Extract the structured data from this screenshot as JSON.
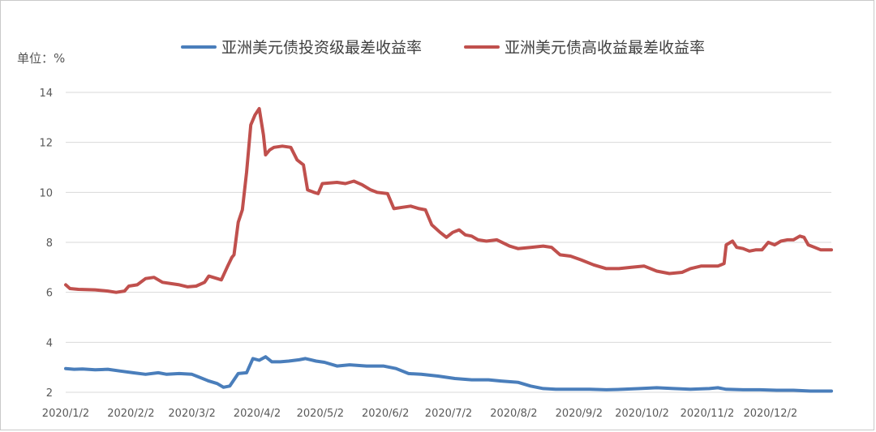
{
  "chart_data": {
    "type": "line",
    "unit_label": "单位：%",
    "ylim": [
      2,
      14
    ],
    "y_ticks": [
      "2",
      "4",
      "6",
      "8",
      "10",
      "12",
      "14"
    ],
    "x_range": [
      "2020-01-02",
      "2020-12-31"
    ],
    "x_tick_labels": [
      "2020/1/2",
      "2020/2/2",
      "2020/3/2",
      "2020/4/2",
      "2020/5/2",
      "2020/6/2",
      "2020/7/2",
      "2020/8/2",
      "2020/9/2",
      "2020/10/2",
      "2020/11/2",
      "2020/12/2"
    ],
    "grid": "horizontal",
    "legend_position": "top",
    "series": [
      {
        "name": "亚洲美元债投资级最差收益率",
        "color": "#4a7ebb",
        "points": [
          [
            "2020-01-02",
            2.95
          ],
          [
            "2020-01-06",
            2.92
          ],
          [
            "2020-01-10",
            2.93
          ],
          [
            "2020-01-16",
            2.9
          ],
          [
            "2020-01-22",
            2.92
          ],
          [
            "2020-01-28",
            2.85
          ],
          [
            "2020-02-03",
            2.78
          ],
          [
            "2020-02-09",
            2.72
          ],
          [
            "2020-02-15",
            2.78
          ],
          [
            "2020-02-19",
            2.72
          ],
          [
            "2020-02-25",
            2.75
          ],
          [
            "2020-03-02",
            2.72
          ],
          [
            "2020-03-05",
            2.62
          ],
          [
            "2020-03-10",
            2.45
          ],
          [
            "2020-03-14",
            2.35
          ],
          [
            "2020-03-17",
            2.2
          ],
          [
            "2020-03-20",
            2.25
          ],
          [
            "2020-03-24",
            2.75
          ],
          [
            "2020-03-28",
            2.78
          ],
          [
            "2020-03-31",
            3.35
          ],
          [
            "2020-04-03",
            3.28
          ],
          [
            "2020-04-06",
            3.42
          ],
          [
            "2020-04-09",
            3.22
          ],
          [
            "2020-04-13",
            3.22
          ],
          [
            "2020-04-17",
            3.25
          ],
          [
            "2020-04-22",
            3.3
          ],
          [
            "2020-04-25",
            3.35
          ],
          [
            "2020-04-30",
            3.25
          ],
          [
            "2020-05-04",
            3.2
          ],
          [
            "2020-05-10",
            3.05
          ],
          [
            "2020-05-16",
            3.1
          ],
          [
            "2020-05-24",
            3.05
          ],
          [
            "2020-06-01",
            3.05
          ],
          [
            "2020-06-07",
            2.95
          ],
          [
            "2020-06-13",
            2.75
          ],
          [
            "2020-06-19",
            2.72
          ],
          [
            "2020-06-27",
            2.65
          ],
          [
            "2020-07-05",
            2.55
          ],
          [
            "2020-07-13",
            2.5
          ],
          [
            "2020-07-21",
            2.5
          ],
          [
            "2020-07-27",
            2.45
          ],
          [
            "2020-08-04",
            2.4
          ],
          [
            "2020-08-10",
            2.25
          ],
          [
            "2020-08-16",
            2.15
          ],
          [
            "2020-08-22",
            2.12
          ],
          [
            "2020-08-30",
            2.12
          ],
          [
            "2020-09-07",
            2.12
          ],
          [
            "2020-09-15",
            2.1
          ],
          [
            "2020-09-23",
            2.12
          ],
          [
            "2020-10-01",
            2.15
          ],
          [
            "2020-10-09",
            2.18
          ],
          [
            "2020-10-17",
            2.15
          ],
          [
            "2020-10-25",
            2.12
          ],
          [
            "2020-11-03",
            2.15
          ],
          [
            "2020-11-07",
            2.18
          ],
          [
            "2020-11-11",
            2.12
          ],
          [
            "2020-11-19",
            2.1
          ],
          [
            "2020-11-27",
            2.1
          ],
          [
            "2020-12-05",
            2.08
          ],
          [
            "2020-12-13",
            2.08
          ],
          [
            "2020-12-21",
            2.05
          ],
          [
            "2020-12-31",
            2.05
          ]
        ]
      },
      {
        "name": "亚洲美元债高收益最差收益率",
        "color": "#c0504d",
        "points": [
          [
            "2020-01-02",
            6.3
          ],
          [
            "2020-01-04",
            6.15
          ],
          [
            "2020-01-08",
            6.12
          ],
          [
            "2020-01-16",
            6.1
          ],
          [
            "2020-01-22",
            6.05
          ],
          [
            "2020-01-26",
            6.0
          ],
          [
            "2020-01-30",
            6.05
          ],
          [
            "2020-02-01",
            6.25
          ],
          [
            "2020-02-05",
            6.3
          ],
          [
            "2020-02-09",
            6.55
          ],
          [
            "2020-02-13",
            6.6
          ],
          [
            "2020-02-17",
            6.4
          ],
          [
            "2020-02-21",
            6.35
          ],
          [
            "2020-02-25",
            6.3
          ],
          [
            "2020-02-29",
            6.22
          ],
          [
            "2020-03-04",
            6.25
          ],
          [
            "2020-03-08",
            6.4
          ],
          [
            "2020-03-10",
            6.65
          ],
          [
            "2020-03-14",
            6.55
          ],
          [
            "2020-03-16",
            6.5
          ],
          [
            "2020-03-19",
            7.05
          ],
          [
            "2020-03-21",
            7.4
          ],
          [
            "2020-03-22",
            7.5
          ],
          [
            "2020-03-24",
            8.8
          ],
          [
            "2020-03-26",
            9.3
          ],
          [
            "2020-03-28",
            10.8
          ],
          [
            "2020-03-30",
            12.7
          ],
          [
            "2020-04-01",
            13.1
          ],
          [
            "2020-04-03",
            13.35
          ],
          [
            "2020-04-05",
            12.3
          ],
          [
            "2020-04-06",
            11.5
          ],
          [
            "2020-04-08",
            11.7
          ],
          [
            "2020-04-10",
            11.8
          ],
          [
            "2020-04-14",
            11.85
          ],
          [
            "2020-04-18",
            11.8
          ],
          [
            "2020-04-21",
            11.3
          ],
          [
            "2020-04-24",
            11.1
          ],
          [
            "2020-04-26",
            10.1
          ],
          [
            "2020-04-29",
            10.0
          ],
          [
            "2020-05-01",
            9.95
          ],
          [
            "2020-05-03",
            10.35
          ],
          [
            "2020-05-10",
            10.4
          ],
          [
            "2020-05-14",
            10.35
          ],
          [
            "2020-05-18",
            10.45
          ],
          [
            "2020-05-22",
            10.3
          ],
          [
            "2020-05-26",
            10.1
          ],
          [
            "2020-05-29",
            10.0
          ],
          [
            "2020-06-03",
            9.95
          ],
          [
            "2020-06-06",
            9.35
          ],
          [
            "2020-06-10",
            9.4
          ],
          [
            "2020-06-14",
            9.45
          ],
          [
            "2020-06-18",
            9.35
          ],
          [
            "2020-06-21",
            9.3
          ],
          [
            "2020-06-24",
            8.7
          ],
          [
            "2020-06-28",
            8.4
          ],
          [
            "2020-07-01",
            8.2
          ],
          [
            "2020-07-04",
            8.4
          ],
          [
            "2020-07-07",
            8.5
          ],
          [
            "2020-07-10",
            8.3
          ],
          [
            "2020-07-13",
            8.25
          ],
          [
            "2020-07-16",
            8.1
          ],
          [
            "2020-07-20",
            8.05
          ],
          [
            "2020-07-25",
            8.1
          ],
          [
            "2020-07-31",
            7.85
          ],
          [
            "2020-08-04",
            7.75
          ],
          [
            "2020-08-10",
            7.8
          ],
          [
            "2020-08-16",
            7.85
          ],
          [
            "2020-08-20",
            7.8
          ],
          [
            "2020-08-24",
            7.5
          ],
          [
            "2020-08-29",
            7.45
          ],
          [
            "2020-09-03",
            7.3
          ],
          [
            "2020-09-09",
            7.1
          ],
          [
            "2020-09-15",
            6.95
          ],
          [
            "2020-09-21",
            6.95
          ],
          [
            "2020-09-27",
            7.0
          ],
          [
            "2020-10-03",
            7.05
          ],
          [
            "2020-10-09",
            6.85
          ],
          [
            "2020-10-15",
            6.75
          ],
          [
            "2020-10-21",
            6.8
          ],
          [
            "2020-10-25",
            6.95
          ],
          [
            "2020-10-30",
            7.05
          ],
          [
            "2020-11-03",
            7.05
          ],
          [
            "2020-11-07",
            7.05
          ],
          [
            "2020-11-10",
            7.15
          ],
          [
            "2020-11-11",
            7.9
          ],
          [
            "2020-11-14",
            8.05
          ],
          [
            "2020-11-16",
            7.8
          ],
          [
            "2020-11-19",
            7.75
          ],
          [
            "2020-11-22",
            7.65
          ],
          [
            "2020-11-25",
            7.7
          ],
          [
            "2020-11-28",
            7.7
          ],
          [
            "2020-12-01",
            8.0
          ],
          [
            "2020-12-04",
            7.9
          ],
          [
            "2020-12-07",
            8.05
          ],
          [
            "2020-12-10",
            8.1
          ],
          [
            "2020-12-13",
            8.1
          ],
          [
            "2020-12-16",
            8.25
          ],
          [
            "2020-12-18",
            8.2
          ],
          [
            "2020-12-20",
            7.9
          ],
          [
            "2020-12-23",
            7.8
          ],
          [
            "2020-12-26",
            7.7
          ],
          [
            "2020-12-31",
            7.7
          ]
        ]
      }
    ]
  }
}
